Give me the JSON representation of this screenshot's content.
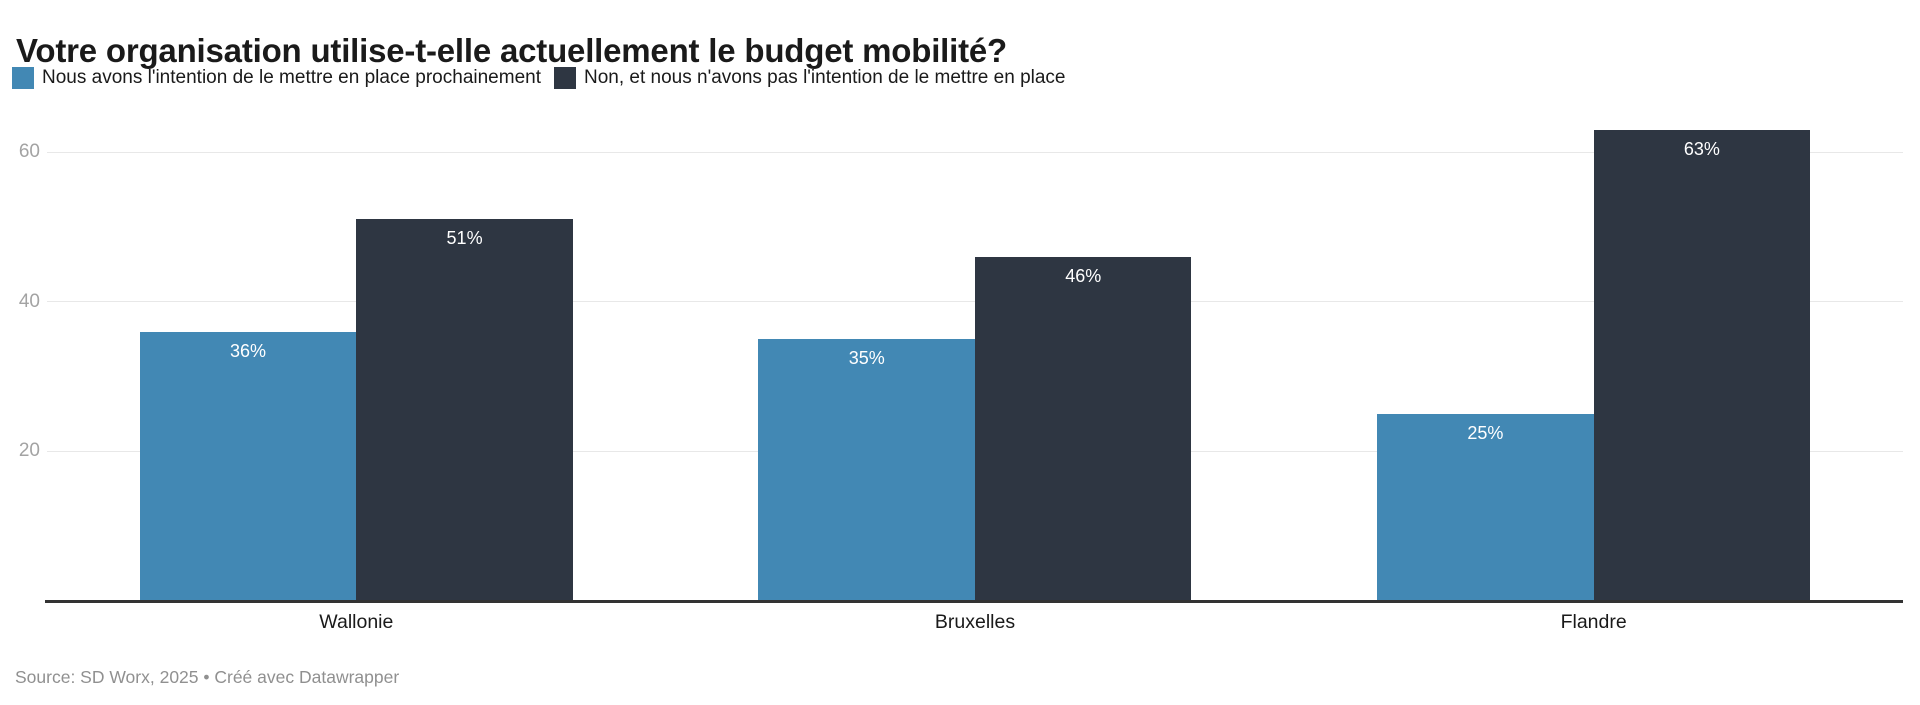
{
  "title": "Votre organisation utilise-t-elle actuellement le budget mobilité?",
  "colors": {
    "series_intention": "#4288b4",
    "series_non": "#2e3642",
    "gridline": "#e8e8e8",
    "axis_line": "#333333",
    "tick_label": "#a3a3a3",
    "text": "#1a1a1a",
    "bar_label": "#ffffff",
    "footer_text": "#909090",
    "background": "#ffffff"
  },
  "legend": {
    "items": [
      {
        "label": "Nous avons l'intention de le mettre en place prochainement",
        "color": "#4288b4"
      },
      {
        "label": "Non, et nous n'avons pas l'intention de le mettre en place",
        "color": "#2e3642"
      }
    ]
  },
  "chart_data": {
    "type": "bar",
    "title": "Votre organisation utilise-t-elle actuellement le budget mobilité?",
    "categories": [
      "Wallonie",
      "Bruxelles",
      "Flandre"
    ],
    "series": [
      {
        "name": "Nous avons l'intention de le mettre en place prochainement",
        "color": "#4288b4",
        "values": [
          36,
          35,
          25
        ],
        "data_labels": [
          "36%",
          "35%",
          "25%"
        ]
      },
      {
        "name": "Non, et nous n'avons pas l'intention de le mettre en place",
        "color": "#2e3642",
        "values": [
          51,
          46,
          63
        ],
        "data_labels": [
          "51%",
          "46%",
          "63%"
        ]
      }
    ],
    "xlabel": "",
    "ylabel": "",
    "yticks": [
      20,
      40,
      60
    ],
    "ylim": [
      0,
      66.3
    ],
    "value_unit": "%",
    "grid": "horizontal-only",
    "legend_position": "top-left",
    "bar_label_position": "inside-top"
  },
  "footer": {
    "source_text": "Source: SD Worx, 2025 • Créé avec Datawrapper"
  }
}
